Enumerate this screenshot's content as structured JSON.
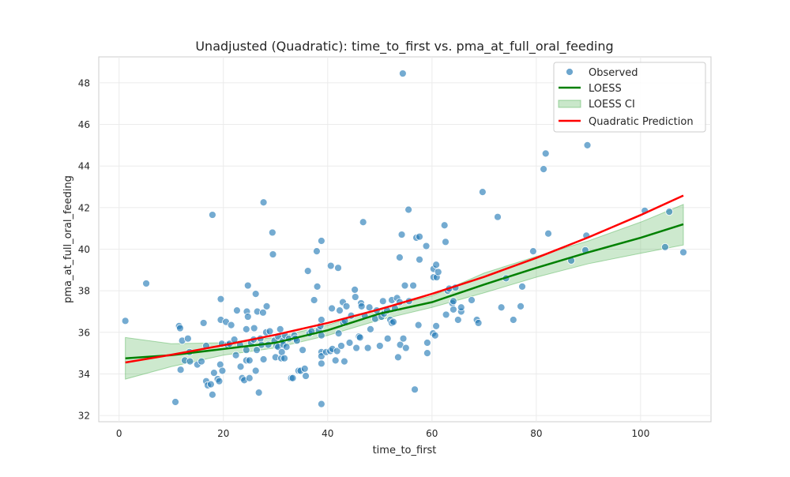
{
  "chart_data": {
    "type": "scatter",
    "title": "Unadjusted (Quadratic): time_to_first vs. pma_at_full_oral_feeding",
    "xlabel": "time_to_first",
    "ylabel": "pma_at_full_oral_feeding",
    "xlim": [
      -3.9,
      113.5
    ],
    "ylim": [
      31.7,
      49.25
    ],
    "xticks": [
      0,
      20,
      40,
      60,
      80,
      100
    ],
    "yticks": [
      32,
      34,
      36,
      38,
      40,
      42,
      44,
      46,
      48
    ],
    "grid": true,
    "legend_position": "top-right",
    "legend": [
      "Observed",
      "LOESS",
      "LOESS CI",
      "Quadratic Prediction"
    ],
    "colors": {
      "observed": "#1f77b4",
      "loess": "#008000",
      "loess_ci": "#4caf50",
      "quadratic": "#ff0000"
    },
    "observed": [
      [
        1.2,
        36.55
      ],
      [
        5.2,
        38.35
      ],
      [
        10.8,
        32.65
      ],
      [
        11.5,
        36.3
      ],
      [
        11.7,
        36.2
      ],
      [
        11.8,
        34.2
      ],
      [
        12.1,
        35.6
      ],
      [
        12.6,
        34.65
      ],
      [
        13.2,
        35.7
      ],
      [
        13.5,
        35.05
      ],
      [
        13.6,
        34.6
      ],
      [
        15,
        34.45
      ],
      [
        15.8,
        34.6
      ],
      [
        16.2,
        36.45
      ],
      [
        16.7,
        35.35
      ],
      [
        16.7,
        33.65
      ],
      [
        17,
        33.45
      ],
      [
        17.6,
        33.5
      ],
      [
        17.9,
        41.65
      ],
      [
        17.9,
        33.0
      ],
      [
        18.2,
        34.05
      ],
      [
        18.9,
        33.75
      ],
      [
        19.2,
        33.65
      ],
      [
        19.4,
        34.45
      ],
      [
        19.5,
        37.6
      ],
      [
        19.5,
        36.6
      ],
      [
        19.7,
        35.45
      ],
      [
        19.8,
        34.15
      ],
      [
        20.5,
        36.5
      ],
      [
        20.8,
        35.4
      ],
      [
        21.2,
        35.45
      ],
      [
        21.5,
        36.35
      ],
      [
        22.1,
        35.65
      ],
      [
        22.4,
        34.9
      ],
      [
        22.6,
        37.05
      ],
      [
        23.2,
        35.4
      ],
      [
        23.3,
        34.35
      ],
      [
        23.6,
        33.8
      ],
      [
        24,
        33.7
      ],
      [
        24.4,
        34.65
      ],
      [
        24.4,
        35.15
      ],
      [
        24.4,
        36.15
      ],
      [
        24.5,
        37.0
      ],
      [
        24.7,
        36.75
      ],
      [
        24.7,
        38.25
      ],
      [
        25,
        33.8
      ],
      [
        25,
        34.65
      ],
      [
        25.3,
        35.5
      ],
      [
        25.8,
        35.65
      ],
      [
        25.9,
        36.2
      ],
      [
        26.2,
        37.85
      ],
      [
        26.4,
        35.15
      ],
      [
        26.2,
        34.15
      ],
      [
        26.5,
        37.0
      ],
      [
        26.8,
        33.1
      ],
      [
        27.1,
        35.7
      ],
      [
        27.3,
        35.4
      ],
      [
        27.6,
        36.95
      ],
      [
        27.7,
        42.25
      ],
      [
        27.7,
        34.7
      ],
      [
        28.2,
        36.0
      ],
      [
        28.3,
        37.25
      ],
      [
        28.6,
        35.4
      ],
      [
        28.9,
        36.05
      ],
      [
        29.4,
        40.8
      ],
      [
        29.5,
        39.75
      ],
      [
        29.8,
        35.6
      ],
      [
        30,
        34.8
      ],
      [
        30.2,
        35.35
      ],
      [
        30.5,
        35.8
      ],
      [
        30.5,
        35.3
      ],
      [
        30.9,
        36.15
      ],
      [
        31.1,
        34.75
      ],
      [
        31.2,
        35.05
      ],
      [
        31.4,
        35.6
      ],
      [
        31.5,
        35.4
      ],
      [
        31.7,
        34.75
      ],
      [
        31.8,
        35.85
      ],
      [
        32.1,
        35.3
      ],
      [
        32.6,
        35.7
      ],
      [
        33,
        33.8
      ],
      [
        33.3,
        33.8
      ],
      [
        33.6,
        35.85
      ],
      [
        33.8,
        35.7
      ],
      [
        34.1,
        35.6
      ],
      [
        34.4,
        34.15
      ],
      [
        34.8,
        34.15
      ],
      [
        35.2,
        35.15
      ],
      [
        35.6,
        34.25
      ],
      [
        35.8,
        33.9
      ],
      [
        36.2,
        38.95
      ],
      [
        36.5,
        35.95
      ],
      [
        36.9,
        36.05
      ],
      [
        37.4,
        37.55
      ],
      [
        37.9,
        39.9
      ],
      [
        38,
        38.2
      ],
      [
        38.3,
        36.1
      ],
      [
        38.6,
        36.3
      ],
      [
        38.8,
        40.4
      ],
      [
        38.8,
        36.6
      ],
      [
        38.8,
        35.85
      ],
      [
        38.8,
        35.05
      ],
      [
        38.8,
        34.85
      ],
      [
        38.8,
        34.5
      ],
      [
        38.8,
        32.55
      ],
      [
        39.7,
        35.05
      ],
      [
        40.5,
        35.1
      ],
      [
        40.6,
        39.2
      ],
      [
        40.8,
        37.15
      ],
      [
        40.9,
        35.2
      ],
      [
        41.5,
        34.65
      ],
      [
        41.8,
        35.1
      ],
      [
        42,
        39.1
      ],
      [
        42.1,
        35.95
      ],
      [
        42.3,
        37.05
      ],
      [
        42.6,
        35.35
      ],
      [
        42.9,
        37.45
      ],
      [
        43,
        36.45
      ],
      [
        43.2,
        34.6
      ],
      [
        43.3,
        36.55
      ],
      [
        43.6,
        37.25
      ],
      [
        44.2,
        35.5
      ],
      [
        44.5,
        36.8
      ],
      [
        45.2,
        38.05
      ],
      [
        45.3,
        37.7
      ],
      [
        45.5,
        35.25
      ],
      [
        46,
        35.8
      ],
      [
        46.2,
        35.75
      ],
      [
        46.4,
        37.4
      ],
      [
        46.5,
        37.25
      ],
      [
        46.8,
        41.3
      ],
      [
        47.1,
        36.8
      ],
      [
        47.7,
        35.25
      ],
      [
        48,
        37.2
      ],
      [
        48.2,
        36.15
      ],
      [
        49.1,
        36.65
      ],
      [
        49.4,
        37.05
      ],
      [
        50,
        35.35
      ],
      [
        50.3,
        36.75
      ],
      [
        50.6,
        37.5
      ],
      [
        50.8,
        36.9
      ],
      [
        51.4,
        37.05
      ],
      [
        51.5,
        35.7
      ],
      [
        52,
        36.6
      ],
      [
        52.3,
        36.45
      ],
      [
        52.3,
        37.55
      ],
      [
        52.6,
        36.5
      ],
      [
        52.9,
        37.15
      ],
      [
        53.3,
        37.65
      ],
      [
        53.5,
        34.8
      ],
      [
        53.8,
        39.6
      ],
      [
        53.8,
        37.45
      ],
      [
        53.9,
        35.4
      ],
      [
        54.2,
        40.7
      ],
      [
        54.4,
        48.45
      ],
      [
        54.5,
        35.7
      ],
      [
        54.8,
        38.25
      ],
      [
        55,
        35.25
      ],
      [
        55.5,
        41.9
      ],
      [
        55.6,
        37.5
      ],
      [
        56.4,
        38.25
      ],
      [
        56.7,
        33.25
      ],
      [
        57,
        40.55
      ],
      [
        57.4,
        36.35
      ],
      [
        57.6,
        39.5
      ],
      [
        57.6,
        40.6
      ],
      [
        58.9,
        40.15
      ],
      [
        59.1,
        35.5
      ],
      [
        59.1,
        35
      ],
      [
        60.2,
        35.95
      ],
      [
        60.3,
        39.05
      ],
      [
        60.3,
        38.65
      ],
      [
        60.6,
        35.85
      ],
      [
        60.8,
        39.25
      ],
      [
        60.8,
        36.3
      ],
      [
        60.9,
        38.65
      ],
      [
        61.2,
        38.9
      ],
      [
        62.4,
        41.15
      ],
      [
        62.6,
        40.35
      ],
      [
        62.7,
        36.85
      ],
      [
        63,
        38
      ],
      [
        63.3,
        38.1
      ],
      [
        63.9,
        37.4
      ],
      [
        64.1,
        37.5
      ],
      [
        64.1,
        37.1
      ],
      [
        64.5,
        38.15
      ],
      [
        65,
        36.6
      ],
      [
        65.6,
        37
      ],
      [
        65.6,
        37.2
      ],
      [
        67.6,
        37.55
      ],
      [
        68.6,
        36.6
      ],
      [
        68.9,
        36.45
      ],
      [
        69.7,
        42.75
      ],
      [
        72.6,
        41.55
      ],
      [
        73.3,
        37.2
      ],
      [
        74.2,
        38.6
      ],
      [
        75.6,
        36.6
      ],
      [
        77,
        37.25
      ],
      [
        77.3,
        38.2
      ],
      [
        79.4,
        39.9
      ],
      [
        81.4,
        43.85
      ],
      [
        81.8,
        44.6
      ],
      [
        82.3,
        40.75
      ],
      [
        86.7,
        39.45
      ],
      [
        89.4,
        39.95
      ],
      [
        89.6,
        40.65
      ],
      [
        89.8,
        45.0
      ],
      [
        100.8,
        41.85
      ],
      [
        104.7,
        40.1
      ],
      [
        105.5,
        41.8
      ],
      [
        108.2,
        39.85
      ]
    ],
    "loess": {
      "x": [
        1.2,
        10,
        20,
        30,
        40,
        50,
        60,
        70,
        80,
        90,
        100,
        108.2
      ],
      "y": [
        34.75,
        34.9,
        35.2,
        35.5,
        36.1,
        36.9,
        37.45,
        38.3,
        39.1,
        39.85,
        40.55,
        41.2
      ],
      "ci_lower": [
        33.75,
        34.35,
        34.9,
        35.25,
        35.85,
        36.6,
        37.2,
        37.9,
        38.65,
        39.3,
        39.8,
        40.2
      ],
      "ci_upper": [
        35.75,
        35.45,
        35.5,
        35.75,
        36.35,
        37.15,
        37.75,
        38.85,
        39.65,
        40.4,
        41.3,
        42.15
      ]
    },
    "quadratic": {
      "x": [
        1.2,
        10,
        20,
        30,
        40,
        50,
        60,
        70,
        80,
        90,
        100,
        108.2
      ],
      "y": [
        34.55,
        34.92,
        35.38,
        35.88,
        36.45,
        37.11,
        37.85,
        38.67,
        39.58,
        40.57,
        41.64,
        42.58
      ]
    }
  }
}
